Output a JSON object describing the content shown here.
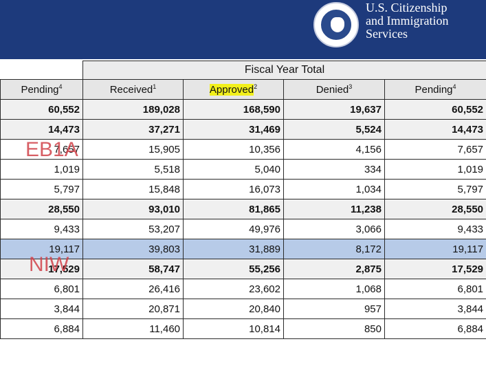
{
  "header": {
    "agency_lines": [
      "U.S. Citizenship",
      "and Immigration",
      "Services"
    ],
    "seal_icon": "dhs-seal-icon",
    "bar_color": "#1d3a7c"
  },
  "table": {
    "group_header": "Fiscal Year Total",
    "columns": [
      {
        "label": "Pending",
        "note": "4"
      },
      {
        "label": "Received",
        "note": "1"
      },
      {
        "label": "Approved",
        "note": "2"
      },
      {
        "label": "Denied",
        "note": "3"
      },
      {
        "label": "Pending",
        "note": "4"
      }
    ],
    "rows": [
      {
        "bold": true,
        "cells": [
          "60,552",
          "189,028",
          "168,590",
          "19,637",
          "60,552"
        ]
      },
      {
        "bold": true,
        "cells": [
          "14,473",
          "37,271",
          "31,469",
          "5,524",
          "14,473"
        ]
      },
      {
        "bold": false,
        "cells": [
          "7,657",
          "15,905",
          "10,356",
          "4,156",
          "7,657"
        ]
      },
      {
        "bold": false,
        "cells": [
          "1,019",
          "5,518",
          "5,040",
          "334",
          "1,019"
        ]
      },
      {
        "bold": false,
        "cells": [
          "5,797",
          "15,848",
          "16,073",
          "1,034",
          "5,797"
        ]
      },
      {
        "bold": true,
        "cells": [
          "28,550",
          "93,010",
          "81,865",
          "11,238",
          "28,550"
        ]
      },
      {
        "bold": false,
        "cells": [
          "9,433",
          "53,207",
          "49,976",
          "3,066",
          "9,433"
        ]
      },
      {
        "bold": false,
        "highlight": true,
        "cells": [
          "19,117",
          "39,803",
          "31,889",
          "8,172",
          "19,117"
        ]
      },
      {
        "bold": true,
        "cells": [
          "17,529",
          "58,747",
          "55,256",
          "2,875",
          "17,529"
        ]
      },
      {
        "bold": false,
        "cells": [
          "6,801",
          "26,416",
          "23,602",
          "1,068",
          "6,801"
        ]
      },
      {
        "bold": false,
        "cells": [
          "3,844",
          "20,871",
          "20,840",
          "957",
          "3,844"
        ]
      },
      {
        "bold": false,
        "cells": [
          "6,884",
          "11,460",
          "10,814",
          "850",
          "6,884"
        ]
      }
    ]
  },
  "annotations": {
    "eb1a": "EB1A",
    "niw": "NIW",
    "annotation_color": "#d1424a",
    "highlight_color": "#b7cbe8",
    "marker_color": "#f2f01a"
  }
}
